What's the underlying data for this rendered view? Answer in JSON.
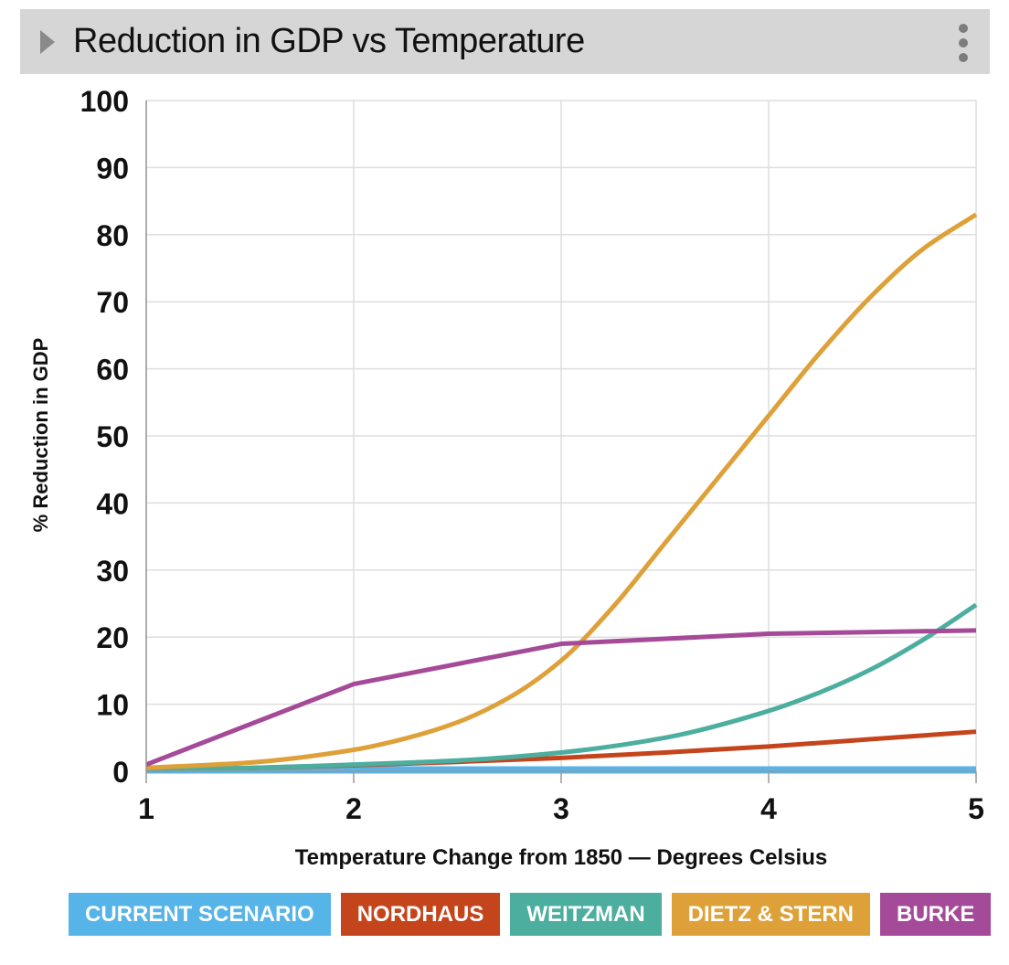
{
  "header": {
    "title": "Reduction in GDP vs Temperature",
    "expand_icon": "triangle-right-icon",
    "menu_icon": "vertical-ellipsis-icon"
  },
  "chart_data": {
    "type": "line",
    "title": "Reduction in GDP vs Temperature",
    "xlabel": "Temperature Change from 1850 — Degrees Celsius",
    "ylabel": "% Reduction in GDP",
    "xlim": [
      1,
      5
    ],
    "ylim": [
      0,
      100
    ],
    "x_ticks": [
      1,
      2,
      3,
      4,
      5
    ],
    "y_ticks": [
      0,
      10,
      20,
      30,
      40,
      50,
      60,
      70,
      80,
      90,
      100
    ],
    "grid": true,
    "legend_position": "bottom",
    "series": [
      {
        "name": "CURRENT SCENARIO",
        "color": "#56b4e9",
        "x": [
          1,
          2,
          3,
          4,
          5
        ],
        "y": [
          0.2,
          0.2,
          0.2,
          0.2,
          0.2
        ]
      },
      {
        "name": "NORDHAUS",
        "color": "#c4441c",
        "x": [
          1,
          1.5,
          2,
          2.5,
          3,
          3.5,
          4,
          4.5,
          5
        ],
        "y": [
          0.2,
          0.5,
          0.9,
          1.4,
          2.0,
          2.8,
          3.7,
          4.8,
          5.9
        ]
      },
      {
        "name": "WEITZMAN",
        "color": "#4cae9e",
        "x": [
          1,
          1.5,
          2,
          2.5,
          3,
          3.5,
          4,
          4.25,
          4.5,
          4.75,
          5
        ],
        "y": [
          0.2,
          0.5,
          1.0,
          1.6,
          2.8,
          5.0,
          9.0,
          11.8,
          15.3,
          19.7,
          24.8
        ]
      },
      {
        "name": "DIETZ & STERN",
        "color": "#dea13a",
        "x": [
          1,
          1.5,
          2,
          2.25,
          2.5,
          2.75,
          3,
          3.25,
          3.5,
          3.75,
          4,
          4.25,
          4.5,
          4.75,
          5
        ],
        "y": [
          0.5,
          1.3,
          3.2,
          4.9,
          7.3,
          11.0,
          16.5,
          24.5,
          34.0,
          43.5,
          53.0,
          62.5,
          71.0,
          78.0,
          83.0
        ]
      },
      {
        "name": "BURKE",
        "color": "#a54a98",
        "x": [
          1,
          2,
          3,
          4,
          5
        ],
        "y": [
          1.0,
          13.0,
          19.0,
          20.5,
          21.0
        ]
      }
    ]
  }
}
